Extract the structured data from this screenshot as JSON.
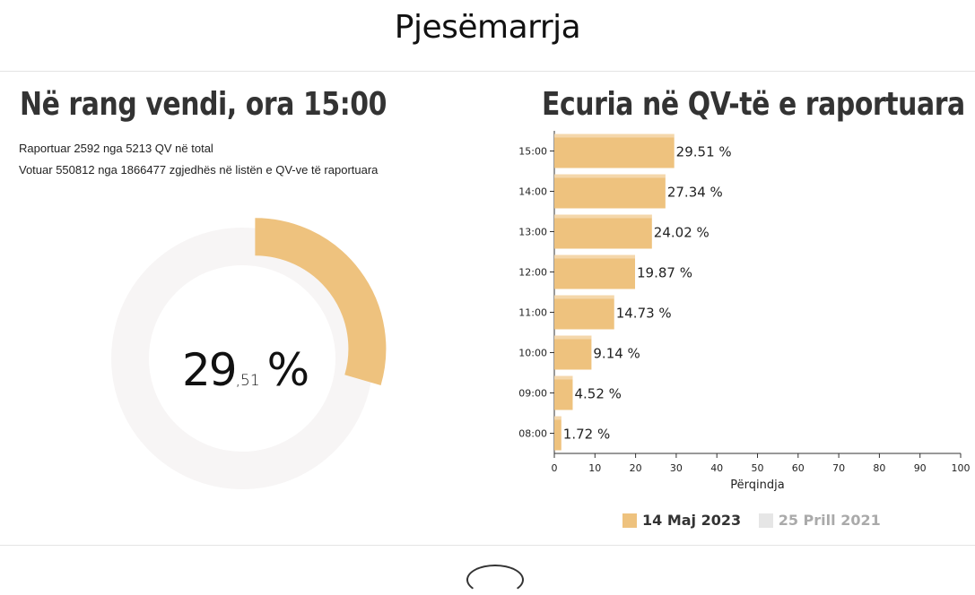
{
  "page": {
    "title": "Pjesëmarrja"
  },
  "national": {
    "heading": "Në rang vendi, ora 15:00",
    "reported_line": "Raportuar 2592 nga 5213 QV në total",
    "voted_line": "Votuar 550812 nga 1866477 zgjedhës në listën e QV-ve të raportuara",
    "turnout_int": "29",
    "turnout_dec": ",51",
    "turnout_pct": "%",
    "turnout_value": 29.51,
    "colors": {
      "fill": "#EEC27E",
      "track": "#F7F5F5"
    }
  },
  "progress": {
    "heading": "Ecuria në QV-të e raportuara",
    "legend": [
      {
        "label": "14 Maj 2023",
        "color": "#EEC27E",
        "active": true
      },
      {
        "label": "25 Prill 2021",
        "color": "#E6E6E6",
        "active": false
      }
    ]
  },
  "chart_data": {
    "type": "bar",
    "orientation": "horizontal",
    "categories": [
      "15:00",
      "14:00",
      "13:00",
      "12:00",
      "11:00",
      "10:00",
      "09:00",
      "08:00"
    ],
    "series": [
      {
        "name": "14 Maj 2023",
        "values": [
          29.51,
          27.34,
          24.02,
          19.87,
          14.73,
          9.14,
          4.52,
          1.72
        ],
        "color": "#EEC27E"
      }
    ],
    "value_labels": [
      "29.51 %",
      "27.34 %",
      "24.02 %",
      "19.87 %",
      "14.73 %",
      "9.14 %",
      "4.52 %",
      "1.72 %"
    ],
    "xlabel": "Përqindja",
    "xlim": [
      0,
      100
    ],
    "xticks": [
      0,
      10,
      20,
      30,
      40,
      50,
      60,
      70,
      80,
      90,
      100
    ],
    "grid": false
  }
}
